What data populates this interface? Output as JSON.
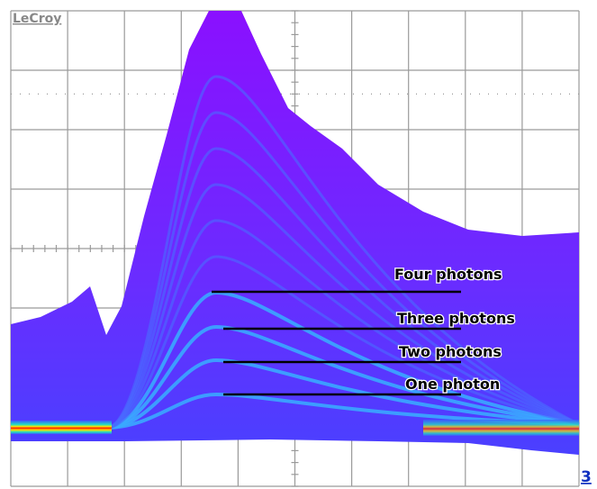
{
  "brand": "LeCroy",
  "annotations": [
    "Four photons",
    "Three photons",
    "Two photons",
    "One photon"
  ],
  "channel": "3"
}
